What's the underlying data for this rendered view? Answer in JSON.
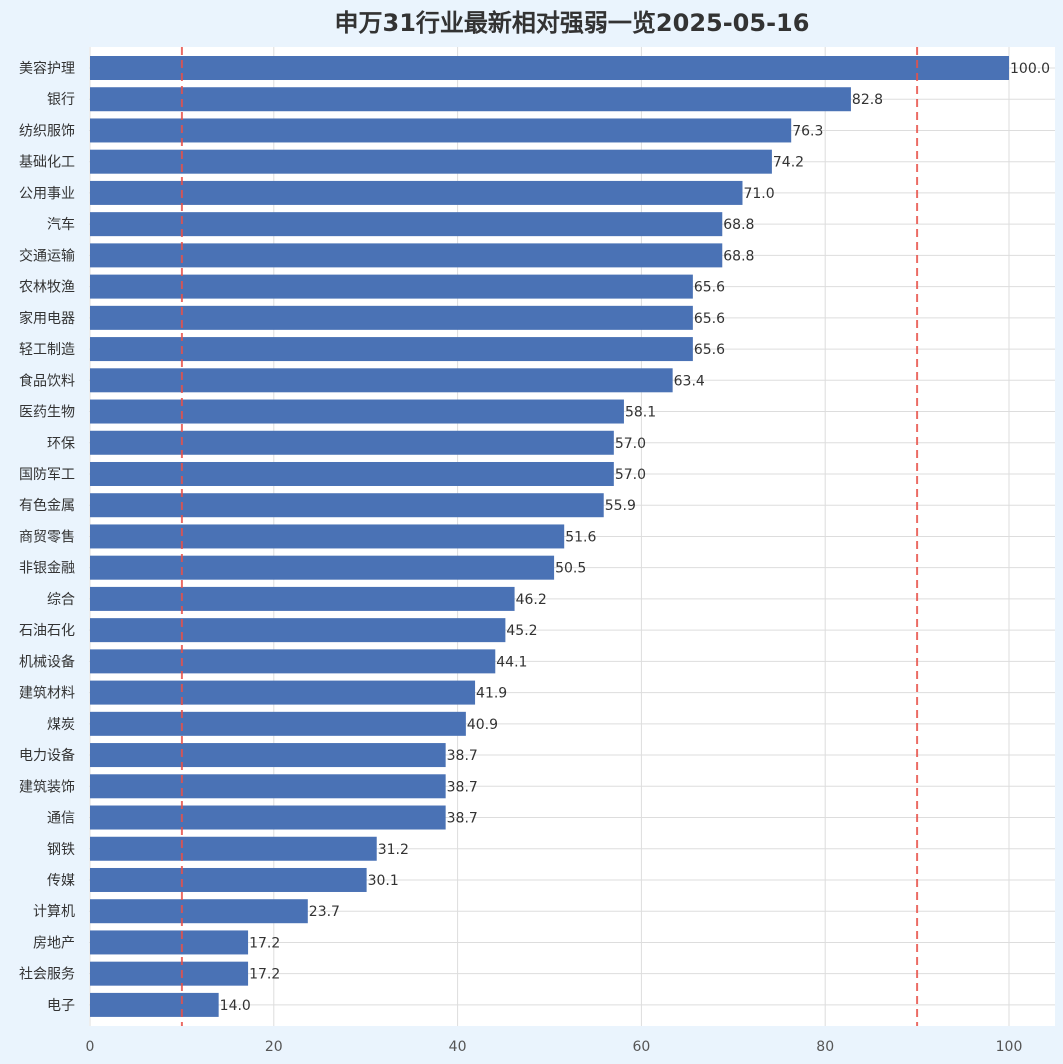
{
  "chart_data": {
    "type": "bar",
    "orientation": "horizontal",
    "title": "申万31行业最新相对强弱一览2025-05-16",
    "xlabel": "",
    "ylabel": "",
    "xlim": [
      0,
      105
    ],
    "xticks": [
      0,
      20,
      40,
      60,
      80,
      100
    ],
    "grid": true,
    "categories": [
      "美容护理",
      "银行",
      "纺织服饰",
      "基础化工",
      "公用事业",
      "汽车",
      "交通运输",
      "农林牧渔",
      "家用电器",
      "轻工制造",
      "食品饮料",
      "医药生物",
      "环保",
      "国防军工",
      "有色金属",
      "商贸零售",
      "非银金融",
      "综合",
      "石油石化",
      "机械设备",
      "建筑材料",
      "煤炭",
      "电力设备",
      "建筑装饰",
      "通信",
      "钢铁",
      "传媒",
      "计算机",
      "房地产",
      "社会服务",
      "电子"
    ],
    "values": [
      100.0,
      82.8,
      76.3,
      74.2,
      71.0,
      68.8,
      68.8,
      65.6,
      65.6,
      65.6,
      63.4,
      58.1,
      57.0,
      57.0,
      55.9,
      51.6,
      50.5,
      46.2,
      45.2,
      44.1,
      41.9,
      40.9,
      38.7,
      38.7,
      38.7,
      31.2,
      30.1,
      23.7,
      17.2,
      17.2,
      14.0
    ],
    "reference_lines": [
      10,
      90
    ],
    "colors": {
      "bar": "#4a72b5",
      "reference_line": "#e8524a",
      "plot_background": "#ffffff",
      "page_background": "#eaf4fd",
      "grid": "#dddddd"
    }
  }
}
